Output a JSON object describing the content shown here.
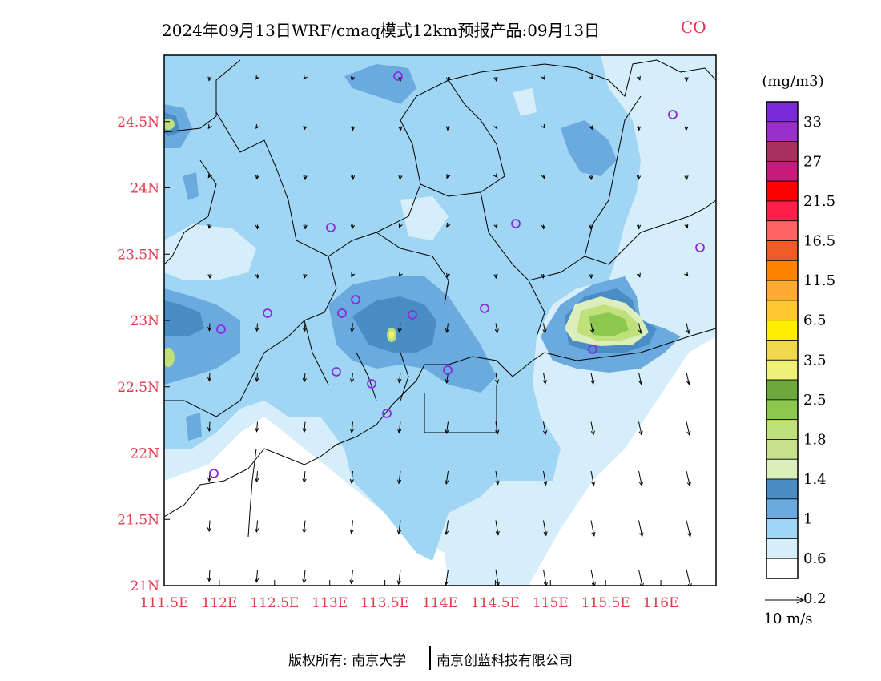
{
  "title": {
    "main": "2024年09月13日WRF/cmaq模式12km预报产品:09月13日",
    "species": "CO"
  },
  "axes": {
    "x_ticks": [
      "111.5E",
      "112E",
      "112.5E",
      "113E",
      "113.5E",
      "114E",
      "114.5E",
      "115E",
      "115.5E",
      "116E"
    ],
    "y_ticks": [
      "24.5N",
      "24N",
      "23.5N",
      "23N",
      "22.5N",
      "22N",
      "21.5N",
      "21N"
    ],
    "x_range": [
      111.5,
      116.5
    ],
    "y_range": [
      21,
      25
    ]
  },
  "colorbar": {
    "unit": "(mg/m3)",
    "labels": [
      "33",
      "27",
      "21.5",
      "16.5",
      "11.5",
      "6.5",
      "3.5",
      "2.5",
      "1.8",
      "1.4",
      "1",
      "0.6",
      "0.2"
    ],
    "colors": [
      "#7b2ad8",
      "#9a30c9",
      "#a8305e",
      "#c71a7a",
      "#ff0000",
      "#ff1e4b",
      "#ff6464",
      "#f05a28",
      "#ff8200",
      "#ffaa32",
      "#ffc832",
      "#ffee00",
      "#f0d84c",
      "#eef078",
      "#6ea83c",
      "#8cc850",
      "#c0e07c",
      "#c8e08c",
      "#dceebc",
      "#4a8cc4",
      "#6aaade",
      "#a0d6f4",
      "#d6eefa",
      "#ffffff"
    ]
  },
  "wind_scale": {
    "label": "10 m/s"
  },
  "footer": {
    "left": "版权所有: 南京大学",
    "right": "南京创蓝科技有限公司"
  },
  "palette": {
    "c_0_2": "#d6eefa",
    "c_0_6": "#a0d6f4",
    "c_0_8": "#6aaade",
    "c_1": "#4a8cc4",
    "c_1_2": "#dceebc",
    "c_1_4": "#c0e07c",
    "c_1_8": "#8cc850",
    "c_2": "#6ea83c",
    "c_2_5": "#eef078",
    "stations": "#8a2be2",
    "tick_red": "#e23b4c"
  }
}
